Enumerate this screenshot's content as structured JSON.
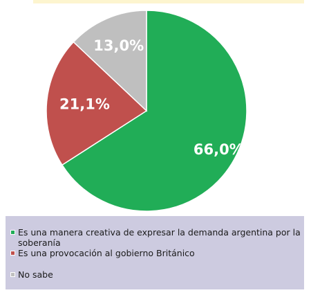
{
  "chart_data": {
    "type": "pie",
    "slices": [
      {
        "label": "Es una manera creativa de expresar la demanda argentina por la soberanía",
        "value": 66.0,
        "display": "66,0%",
        "color": "#21ad57"
      },
      {
        "label": "Es una provocación al gobierno Británico",
        "value": 21.1,
        "display": "21,1%",
        "color": "#c0504d"
      },
      {
        "label": "No sabe",
        "value": 13.0,
        "display": "13,0%",
        "color": "#bfbfbf"
      }
    ],
    "start_angle_deg": 0,
    "direction": "clockwise",
    "legend_position": "bottom"
  }
}
